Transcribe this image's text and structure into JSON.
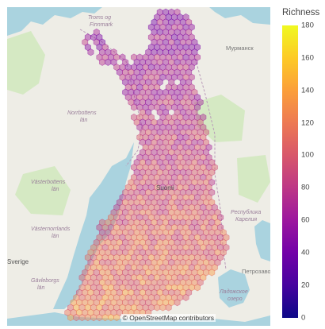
{
  "map": {
    "attribution": "© OpenStreetMap contributors",
    "place_labels": [
      {
        "text": "Troms og",
        "kind": "region"
      },
      {
        "text": "Finnmark",
        "kind": "region"
      },
      {
        "text": "Мурманск",
        "kind": "city"
      },
      {
        "text": "Norrbottens",
        "kind": "region"
      },
      {
        "text": "län",
        "kind": "region"
      },
      {
        "text": "Västerbottens",
        "kind": "region"
      },
      {
        "text": "län",
        "kind": "region"
      },
      {
        "text": "Республика",
        "kind": "region"
      },
      {
        "text": "Карелия",
        "kind": "region"
      },
      {
        "text": "Västernorrlands",
        "kind": "region"
      },
      {
        "text": "län",
        "kind": "region"
      },
      {
        "text": "Sverige",
        "kind": "country"
      },
      {
        "text": "Gävleborgs",
        "kind": "region"
      },
      {
        "text": "län",
        "kind": "region"
      },
      {
        "text": "Петрозаво",
        "kind": "city"
      },
      {
        "text": "Ладожское",
        "kind": "region"
      },
      {
        "text": "озеро",
        "kind": "region"
      },
      {
        "text": "Suomi",
        "kind": "country"
      }
    ],
    "colors": {
      "land": "#eeede6",
      "water": "#aad3df",
      "forest": "#d5e9c3"
    }
  },
  "colorbar": {
    "title": "Richness",
    "min": 0,
    "max": 180,
    "ticks": [
      "180",
      "160",
      "140",
      "120",
      "100",
      "80",
      "60",
      "40",
      "20",
      "0"
    ],
    "colorscale": [
      "#0d0887",
      "#46039f",
      "#7201a8",
      "#9c179e",
      "#bd3786",
      "#d8576b",
      "#ed7953",
      "#fb9f3a",
      "#fdca26",
      "#f0f921"
    ]
  }
}
